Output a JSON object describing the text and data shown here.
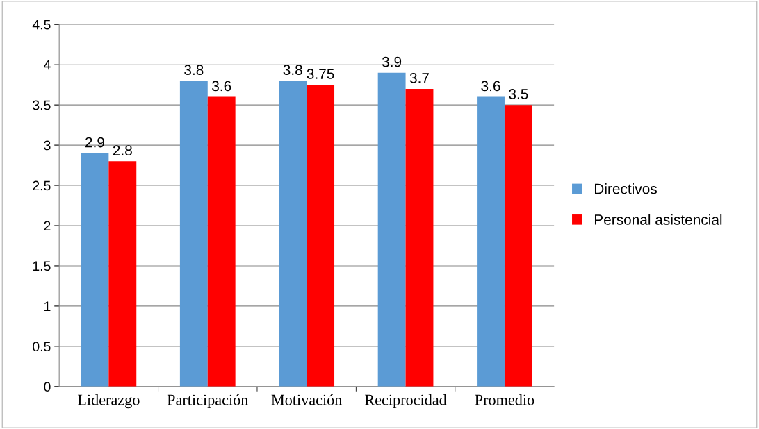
{
  "chart_data": {
    "type": "bar",
    "categories": [
      "Liderazgo",
      "Participación",
      "Motivación",
      "Reciprocidad",
      "Promedio"
    ],
    "series": [
      {
        "name": "Directivos",
        "color": "#5b9bd5",
        "values": [
          2.9,
          3.8,
          3.8,
          3.9,
          3.6
        ]
      },
      {
        "name": "Personal asistencial",
        "color": "#ff0000",
        "values": [
          2.8,
          3.6,
          3.75,
          3.7,
          3.5
        ]
      }
    ],
    "ylim": [
      0,
      4.5
    ],
    "yticks": [
      0,
      0.5,
      1,
      1.5,
      2,
      2.5,
      3,
      3.5,
      4,
      4.5
    ],
    "grid": "y",
    "legend": "right",
    "data_labels": true
  }
}
